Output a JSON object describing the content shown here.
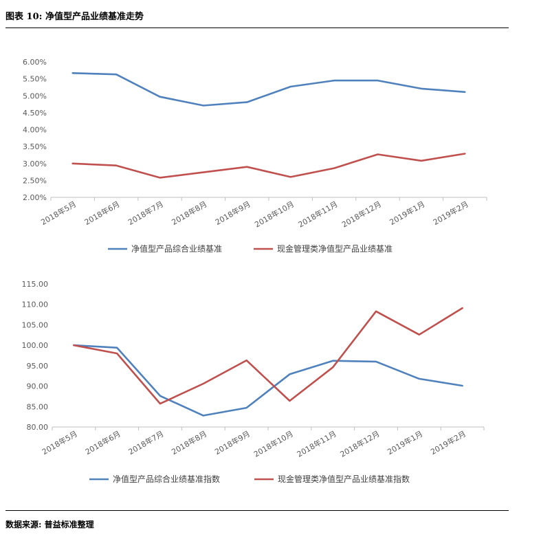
{
  "figure": {
    "title": "图表 10:  净值型产品业绩基准走势",
    "source": "数据来源:  普益标准整理"
  },
  "colors": {
    "blue": "#4f81bd",
    "red": "#c0504d",
    "axis": "#bfbfbf",
    "text": "#595959"
  },
  "chart_data": [
    {
      "type": "line",
      "categories": [
        "2018年5月",
        "2018年6月",
        "2018年7月",
        "2018年8月",
        "2018年9月",
        "2018年10月",
        "2018年11月",
        "2018年12月",
        "2019年1月",
        "2019年2月"
      ],
      "series": [
        {
          "name": "净值型产品综合业绩基准",
          "color": "#4f81bd",
          "values": [
            5.67,
            5.63,
            4.97,
            4.71,
            4.81,
            5.27,
            5.45,
            5.45,
            5.21,
            5.11
          ]
        },
        {
          "name": "现金管理类净值型产品业绩基准",
          "color": "#c0504d",
          "values": [
            3.0,
            2.94,
            2.58,
            2.74,
            2.9,
            2.6,
            2.86,
            3.27,
            3.08,
            3.29
          ]
        }
      ],
      "ylim": [
        2.0,
        6.0
      ],
      "yticks": [
        "2.00%",
        "2.50%",
        "3.00%",
        "3.50%",
        "4.00%",
        "4.50%",
        "5.00%",
        "5.50%",
        "6.00%"
      ],
      "grid": false,
      "legend": "bottom"
    },
    {
      "type": "line",
      "categories": [
        "2018年5月",
        "2018年6月",
        "2018年7月",
        "2018年8月",
        "2018年9月",
        "2018年10月",
        "2018年11月",
        "2018年12月",
        "2019年1月",
        "2019年2月"
      ],
      "series": [
        {
          "name": "净值型产品综合业绩基准指数",
          "color": "#4f81bd",
          "values": [
            100.0,
            99.4,
            87.6,
            82.8,
            84.7,
            92.9,
            96.2,
            96.0,
            91.8,
            90.1
          ]
        },
        {
          "name": "现金管理类净值型产品业绩基准指数",
          "color": "#c0504d",
          "values": [
            100.0,
            98.0,
            85.7,
            90.6,
            96.3,
            86.4,
            94.6,
            108.3,
            102.6,
            109.1
          ]
        }
      ],
      "ylim": [
        80,
        115
      ],
      "yticks": [
        "80.00",
        "85.00",
        "90.00",
        "95.00",
        "100.00",
        "105.00",
        "110.00",
        "115.00"
      ],
      "grid": false,
      "legend": "bottom"
    }
  ]
}
